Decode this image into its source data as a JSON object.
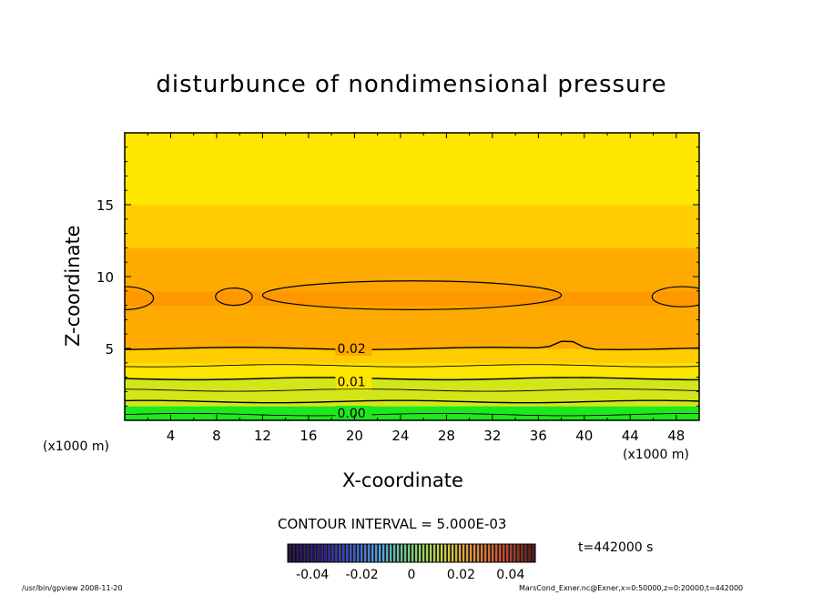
{
  "chart_data": {
    "type": "heatmap",
    "title": "disturbunce of nondimensional pressure",
    "xlabel": "X-coordinate",
    "ylabel": "Z-coordinate",
    "x_unit_left": "(x1000 m)",
    "x_unit_right": "(x1000 m)",
    "xlim": [
      0,
      50
    ],
    "ylim": [
      0,
      20
    ],
    "x_ticks": [
      4,
      8,
      12,
      16,
      20,
      24,
      28,
      32,
      36,
      40,
      44,
      48
    ],
    "y_ticks": [
      5,
      10,
      15
    ],
    "contour_interval_text": "CONTOUR INTERVAL = 5.000E-03",
    "contour_levels": [
      0.0,
      0.005,
      0.01,
      0.015,
      0.02,
      0.025
    ],
    "contour_labels": [
      {
        "text": "0.02",
        "x": 18.5,
        "z": 5.0
      },
      {
        "text": "0.01",
        "x": 18.5,
        "z": 2.7
      },
      {
        "text": "0.00",
        "x": 18.5,
        "z": 0.5
      }
    ],
    "colorbar": {
      "range": [
        -0.05,
        0.05
      ],
      "tick_values": [
        -0.04,
        -0.02,
        0,
        0.02,
        0.04
      ],
      "tick_labels": [
        "-0.04",
        "-0.02",
        "0",
        "0.02",
        "0.04"
      ]
    },
    "profile_z": [
      0,
      0.5,
      1,
      2,
      3,
      4,
      5,
      6,
      7,
      8,
      9,
      10,
      11,
      12,
      13,
      14,
      15,
      16,
      17,
      18,
      19,
      20
    ],
    "profile_values": [
      0.0,
      0.0,
      0.004,
      0.007,
      0.01,
      0.014,
      0.019,
      0.021,
      0.023,
      0.0255,
      0.0255,
      0.024,
      0.022,
      0.02,
      0.018,
      0.016,
      0.015,
      0.014,
      0.013,
      0.012,
      0.012,
      0.012
    ],
    "colors": {
      "green": "#1ee81e",
      "yellow_green": "#d2e61a",
      "yellow": "#ffe600",
      "light_orange": "#ffcc00",
      "orange": "#ffaa00",
      "dark_orange": "#ff9900",
      "frame": "#000000"
    }
  },
  "time_label": "t=442000  s",
  "footer_left": "/usr/bin/gpview   2008-11-20",
  "footer_right": "MarsCond_Exner.nc@Exner,x=0:50000,z=0:20000,t=442000"
}
